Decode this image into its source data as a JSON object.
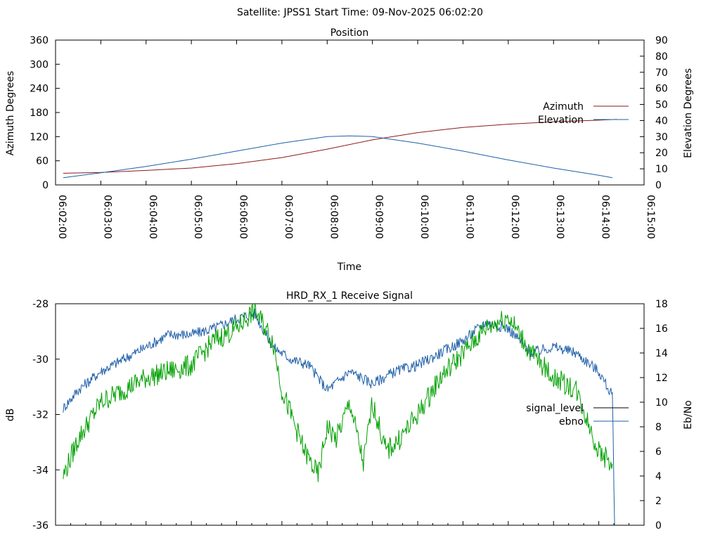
{
  "header": {
    "title": "Satellite: JPSS1    Start Time: 09-Nov-2025 06:02:20"
  },
  "chart_data": [
    {
      "type": "line",
      "title": "Position",
      "xlabel": "Time",
      "ylabel": "Azimuth Degrees",
      "y2label": "Elevation Degrees",
      "x_ticks": [
        "06:02:00",
        "06:03:00",
        "06:04:00",
        "06:05:00",
        "06:06:00",
        "06:07:00",
        "06:08:00",
        "06:09:00",
        "06:10:00",
        "06:11:00",
        "06:12:00",
        "06:13:00",
        "06:14:00",
        "06:15:00"
      ],
      "xlim_minutes": [
        0,
        13
      ],
      "ylim": [
        0,
        360
      ],
      "y_ticks": [
        "0",
        "60",
        "120",
        "180",
        "240",
        "300",
        "360"
      ],
      "y2lim": [
        0,
        90
      ],
      "y2_ticks": [
        "0",
        "10",
        "20",
        "30",
        "40",
        "50",
        "60",
        "70",
        "80",
        "90"
      ],
      "legend_position": "right",
      "series": [
        {
          "name": "Azimuth",
          "axis": "y1",
          "color": "#8b1a1a",
          "x": [
            0.17,
            1,
            2,
            3,
            4,
            5,
            6,
            7,
            8,
            9,
            10,
            11,
            12,
            12.4
          ],
          "values": [
            29,
            31,
            36,
            42,
            53,
            68,
            89,
            112,
            130,
            143,
            151,
            157,
            161,
            163
          ]
        },
        {
          "name": "Elevation",
          "axis": "y2",
          "color": "#1f5fa8",
          "x": [
            0.17,
            1,
            2,
            3,
            4,
            5,
            6,
            6.5,
            7,
            8,
            9,
            10,
            11,
            12,
            12.3
          ],
          "values": [
            4.5,
            7.5,
            11.5,
            16,
            21,
            26,
            30,
            30.5,
            30,
            26,
            21,
            15.5,
            10.5,
            6,
            4.5
          ]
        }
      ]
    },
    {
      "type": "line",
      "title": "HRD_RX_1 Receive Signal",
      "xlabel": "",
      "ylabel": "dB",
      "y2label": "Eb/No",
      "ylim": [
        -36,
        -28
      ],
      "y_ticks": [
        "-36",
        "-34",
        "-32",
        "-30",
        "-28"
      ],
      "y2lim": [
        0,
        18
      ],
      "y2_ticks": [
        "0",
        "2",
        "4",
        "6",
        "8",
        "10",
        "12",
        "14",
        "16",
        "18"
      ],
      "legend_position": "right",
      "series": [
        {
          "name": "signal_level",
          "axis": "y1",
          "color": "#000000",
          "x": [],
          "values": []
        },
        {
          "name": "ebno",
          "axis": "y2",
          "color": "#1f5fa8",
          "x": [
            0.17,
            0.5,
            1,
            1.5,
            2,
            2.5,
            3,
            3.5,
            4,
            4.4,
            4.8,
            5.2,
            5.6,
            6,
            6.5,
            7,
            7.5,
            8,
            8.5,
            9,
            9.5,
            10,
            10.5,
            11,
            11.5,
            12,
            12.3,
            12.35
          ],
          "values": [
            9.5,
            11,
            12.5,
            13.5,
            14.5,
            15.5,
            15.5,
            16,
            16.8,
            17.2,
            14.5,
            13.5,
            13,
            11,
            12.5,
            11.5,
            12.5,
            13,
            14,
            15,
            16.5,
            16,
            14,
            14.5,
            14,
            12.5,
            10.5,
            0
          ]
        },
        {
          "name": "",
          "axis": "y2",
          "color": "#00a000",
          "x": [
            0.17,
            0.5,
            1,
            1.5,
            2,
            2.5,
            3,
            3.5,
            4,
            4.4,
            4.8,
            5,
            5.2,
            5.5,
            5.8,
            6,
            6.2,
            6.5,
            6.8,
            7,
            7.3,
            7.6,
            8,
            8.5,
            9,
            9.5,
            10,
            10.5,
            11,
            11.5,
            12,
            12.3
          ],
          "values": [
            4,
            7,
            10,
            11,
            12,
            12.5,
            13,
            15,
            16,
            17.5,
            15,
            11,
            9,
            6,
            4,
            8,
            7,
            10,
            5,
            10,
            6,
            7,
            9,
            12,
            14,
            16,
            17,
            14,
            12,
            11,
            6,
            5
          ]
        }
      ]
    }
  ]
}
